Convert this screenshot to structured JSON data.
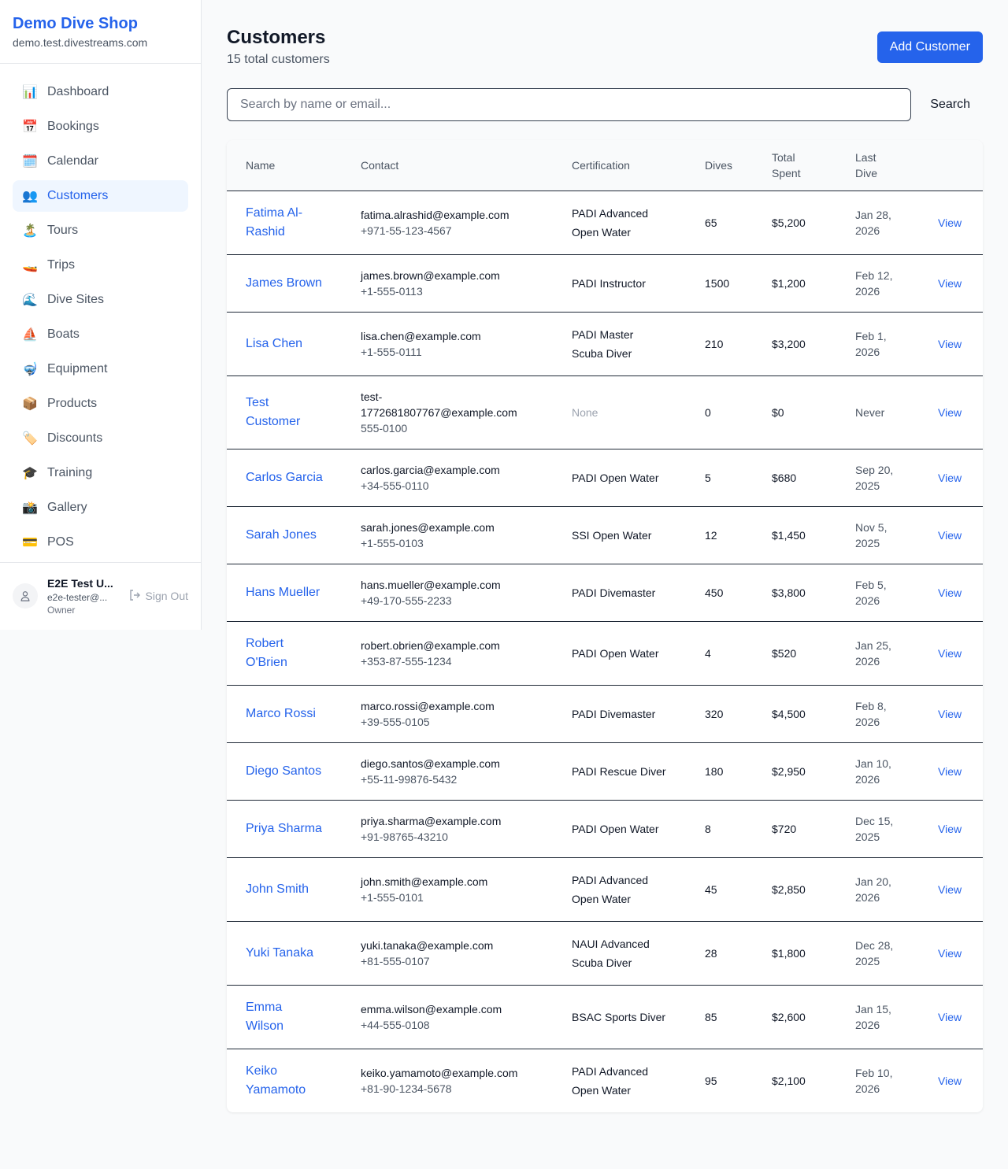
{
  "sidebar": {
    "brand_title": "Demo Dive Shop",
    "brand_domain": "demo.test.divestreams.com",
    "items": [
      {
        "label": "Dashboard",
        "icon": "📊",
        "active": false
      },
      {
        "label": "Bookings",
        "icon": "📅",
        "active": false
      },
      {
        "label": "Calendar",
        "icon": "🗓️",
        "active": false
      },
      {
        "label": "Customers",
        "icon": "👥",
        "active": true
      },
      {
        "label": "Tours",
        "icon": "🏝️",
        "active": false
      },
      {
        "label": "Trips",
        "icon": "🚤",
        "active": false
      },
      {
        "label": "Dive Sites",
        "icon": "🌊",
        "active": false
      },
      {
        "label": "Boats",
        "icon": "⛵",
        "active": false
      },
      {
        "label": "Equipment",
        "icon": "🤿",
        "active": false
      },
      {
        "label": "Products",
        "icon": "📦",
        "active": false
      },
      {
        "label": "Discounts",
        "icon": "🏷️",
        "active": false
      },
      {
        "label": "Training",
        "icon": "🎓",
        "active": false
      },
      {
        "label": "Gallery",
        "icon": "📸",
        "active": false
      },
      {
        "label": "POS",
        "icon": "💳",
        "active": false
      }
    ],
    "user": {
      "name": "E2E Test U...",
      "email": "e2e-tester@...",
      "role": "Owner",
      "sign_out": "Sign Out"
    }
  },
  "header": {
    "title": "Customers",
    "subtitle": "15 total customers",
    "add_button": "Add Customer"
  },
  "search": {
    "placeholder": "Search by name or email...",
    "value": "",
    "button": "Search"
  },
  "table": {
    "columns": [
      "Name",
      "Contact",
      "Certification",
      "Dives",
      "Total Spent",
      "Last Dive",
      ""
    ],
    "rows": [
      {
        "name": "Fatima Al-Rashid",
        "email": "fatima.alrashid@example.com",
        "phone": "+971-55-123-4567",
        "cert": "PADI Advanced Open Water",
        "dives": "65",
        "spent": "$5,200",
        "last": "Jan 28, 2026",
        "action": "View"
      },
      {
        "name": "James Brown",
        "email": "james.brown@example.com",
        "phone": "+1-555-0113",
        "cert": "PADI Instructor",
        "dives": "1500",
        "spent": "$1,200",
        "last": "Feb 12, 2026",
        "action": "View"
      },
      {
        "name": "Lisa Chen",
        "email": "lisa.chen@example.com",
        "phone": "+1-555-0111",
        "cert": "PADI Master Scuba Diver",
        "dives": "210",
        "spent": "$3,200",
        "last": "Feb 1, 2026",
        "action": "View"
      },
      {
        "name": "Test Customer",
        "email": "test-1772681807767@example.com",
        "phone": "555-0100",
        "cert": "None",
        "dives": "0",
        "spent": "$0",
        "last": "Never",
        "action": "View"
      },
      {
        "name": "Carlos Garcia",
        "email": "carlos.garcia@example.com",
        "phone": "+34-555-0110",
        "cert": "PADI Open Water",
        "dives": "5",
        "spent": "$680",
        "last": "Sep 20, 2025",
        "action": "View"
      },
      {
        "name": "Sarah Jones",
        "email": "sarah.jones@example.com",
        "phone": "+1-555-0103",
        "cert": "SSI Open Water",
        "dives": "12",
        "spent": "$1,450",
        "last": "Nov 5, 2025",
        "action": "View"
      },
      {
        "name": "Hans Mueller",
        "email": "hans.mueller@example.com",
        "phone": "+49-170-555-2233",
        "cert": "PADI Divemaster",
        "dives": "450",
        "spent": "$3,800",
        "last": "Feb 5, 2026",
        "action": "View"
      },
      {
        "name": "Robert O'Brien",
        "email": "robert.obrien@example.com",
        "phone": "+353-87-555-1234",
        "cert": "PADI Open Water",
        "dives": "4",
        "spent": "$520",
        "last": "Jan 25, 2026",
        "action": "View"
      },
      {
        "name": "Marco Rossi",
        "email": "marco.rossi@example.com",
        "phone": "+39-555-0105",
        "cert": "PADI Divemaster",
        "dives": "320",
        "spent": "$4,500",
        "last": "Feb 8, 2026",
        "action": "View"
      },
      {
        "name": "Diego Santos",
        "email": "diego.santos@example.com",
        "phone": "+55-11-99876-5432",
        "cert": "PADI Rescue Diver",
        "dives": "180",
        "spent": "$2,950",
        "last": "Jan 10, 2026",
        "action": "View"
      },
      {
        "name": "Priya Sharma",
        "email": "priya.sharma@example.com",
        "phone": "+91-98765-43210",
        "cert": "PADI Open Water",
        "dives": "8",
        "spent": "$720",
        "last": "Dec 15, 2025",
        "action": "View"
      },
      {
        "name": "John Smith",
        "email": "john.smith@example.com",
        "phone": "+1-555-0101",
        "cert": "PADI Advanced Open Water",
        "dives": "45",
        "spent": "$2,850",
        "last": "Jan 20, 2026",
        "action": "View"
      },
      {
        "name": "Yuki Tanaka",
        "email": "yuki.tanaka@example.com",
        "phone": "+81-555-0107",
        "cert": "NAUI Advanced Scuba Diver",
        "dives": "28",
        "spent": "$1,800",
        "last": "Dec 28, 2025",
        "action": "View"
      },
      {
        "name": "Emma Wilson",
        "email": "emma.wilson@example.com",
        "phone": "+44-555-0108",
        "cert": "BSAC Sports Diver",
        "dives": "85",
        "spent": "$2,600",
        "last": "Jan 15, 2026",
        "action": "View"
      },
      {
        "name": "Keiko Yamamoto",
        "email": "keiko.yamamoto@example.com",
        "phone": "+81-90-1234-5678",
        "cert": "PADI Advanced Open Water",
        "dives": "95",
        "spent": "$2,100",
        "last": "Feb 10, 2026",
        "action": "View"
      }
    ]
  },
  "colors": {
    "accent": "#2563eb",
    "active_bg": "#eff6ff"
  }
}
